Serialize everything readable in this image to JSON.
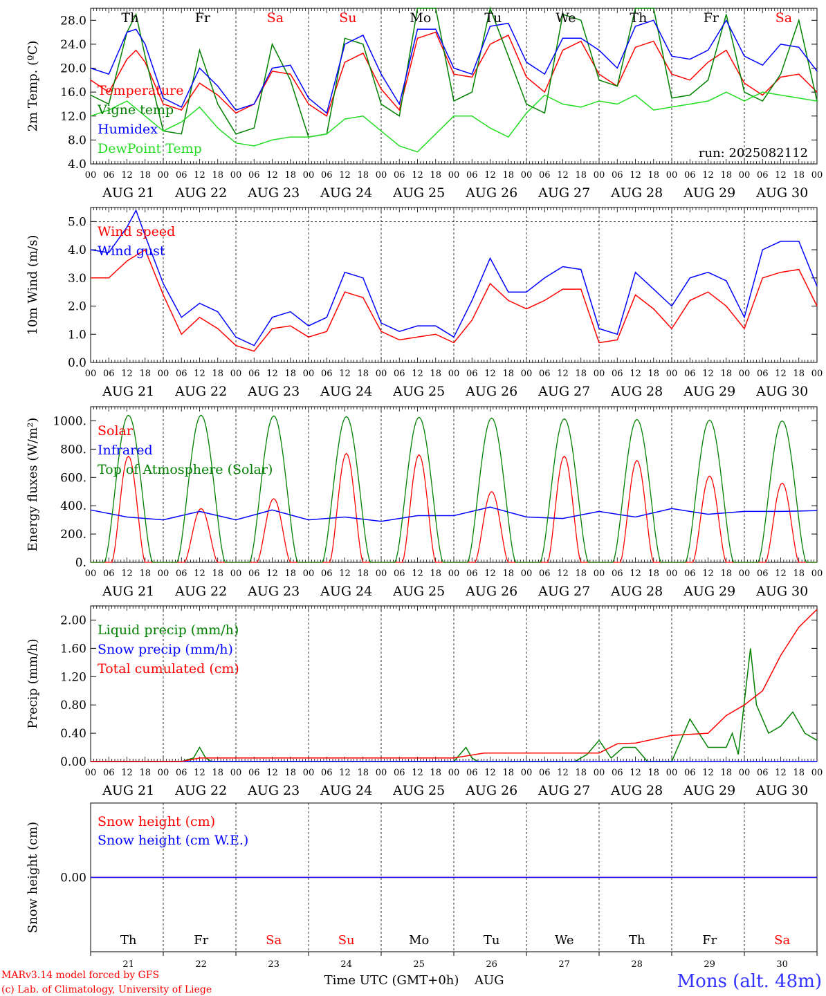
{
  "meteogram": {
    "run_label": "run: 2025082112",
    "credit_line1": "MARv3.14 model forced by GFS",
    "credit_line2": "(c) Lab. of Climatology, University of Liege",
    "time_axis_label": "Time UTC (GMT+0h)",
    "month_label": "AUG",
    "station": "Mons (alt. 48m)",
    "hour_ticks": [
      "00",
      "06",
      "12",
      "18"
    ],
    "days": [
      {
        "date": "AUG 21",
        "num": "21",
        "dow": "Th",
        "weekend": false
      },
      {
        "date": "AUG 22",
        "num": "22",
        "dow": "Fr",
        "weekend": false
      },
      {
        "date": "AUG 23",
        "num": "23",
        "dow": "Sa",
        "weekend": true
      },
      {
        "date": "AUG 24",
        "num": "24",
        "dow": "Su",
        "weekend": true
      },
      {
        "date": "AUG 25",
        "num": "25",
        "dow": "Mo",
        "weekend": false
      },
      {
        "date": "AUG 26",
        "num": "26",
        "dow": "Tu",
        "weekend": false
      },
      {
        "date": "AUG 27",
        "num": "27",
        "dow": "We",
        "weekend": false
      },
      {
        "date": "AUG 28",
        "num": "28",
        "dow": "Th",
        "weekend": false
      },
      {
        "date": "AUG 29",
        "num": "29",
        "dow": "Fr",
        "weekend": false
      },
      {
        "date": "AUG 30",
        "num": "30",
        "dow": "Sa",
        "weekend": true
      }
    ]
  },
  "colors": {
    "red": "#ff0000",
    "green": "#008000",
    "blue": "#0000ff",
    "lime": "#22dd22",
    "weekday": "#000000",
    "weekend": "#ff0000",
    "station": "#3333ff"
  },
  "chart_data": [
    {
      "id": "temperature",
      "type": "line",
      "ylabel": "2m Temp. (ºC)",
      "ylim": [
        4,
        30
      ],
      "yticks": [
        "4.0",
        "8.0",
        "12.0",
        "16.0",
        "20.0",
        "24.0",
        "28.0"
      ],
      "x_unit": "hours since AUG 21 00 UTC",
      "series": [
        {
          "name": "Temperature",
          "color": "red",
          "x": [
            0,
            6,
            12,
            15,
            18,
            24,
            30,
            36,
            42,
            48,
            54,
            60,
            66,
            72,
            78,
            84,
            90,
            96,
            102,
            108,
            114,
            120,
            126,
            132,
            138,
            144,
            150,
            156,
            162,
            168,
            174,
            180,
            186,
            192,
            198,
            204,
            210,
            216,
            222,
            228,
            234,
            240
          ],
          "y": [
            18,
            16,
            21.5,
            23,
            21,
            14,
            13,
            17.5,
            15.5,
            12.5,
            14,
            19.5,
            19,
            14,
            12,
            21,
            22.5,
            16.5,
            13,
            25,
            26,
            19,
            18.5,
            24,
            25.5,
            18.5,
            16,
            23,
            24.5,
            19,
            17,
            23.5,
            24.5,
            19,
            18,
            21,
            23,
            17.5,
            15.5,
            18.5,
            19,
            16
          ]
        },
        {
          "name": "Vigne temp",
          "color": "green",
          "x": [
            0,
            6,
            12,
            15,
            18,
            24,
            30,
            36,
            42,
            48,
            54,
            60,
            66,
            72,
            78,
            84,
            90,
            96,
            102,
            108,
            114,
            120,
            126,
            132,
            138,
            144,
            150,
            156,
            162,
            168,
            174,
            180,
            186,
            192,
            198,
            204,
            210,
            216,
            222,
            228,
            234,
            240
          ],
          "y": [
            15.5,
            14,
            26,
            29,
            22,
            9.5,
            9,
            23,
            14,
            9,
            10,
            24,
            18,
            8.5,
            9,
            25,
            24,
            14,
            12,
            30,
            30,
            14.5,
            16,
            30,
            22,
            14,
            12.5,
            29,
            28,
            18,
            17,
            30,
            30,
            15,
            15.5,
            18,
            29,
            16,
            14.5,
            19,
            28,
            14.5
          ]
        },
        {
          "name": "Humidex",
          "color": "blue",
          "x": [
            0,
            6,
            12,
            15,
            18,
            24,
            30,
            36,
            42,
            48,
            54,
            60,
            66,
            72,
            78,
            84,
            90,
            96,
            102,
            108,
            114,
            120,
            126,
            132,
            138,
            144,
            150,
            156,
            162,
            168,
            174,
            180,
            186,
            192,
            198,
            204,
            210,
            216,
            222,
            228,
            234,
            240
          ],
          "y": [
            20,
            19,
            26,
            26.5,
            24,
            15,
            13.5,
            20,
            17,
            13,
            14,
            20,
            20.5,
            15,
            12.5,
            24,
            25.5,
            19,
            14,
            26.5,
            26.5,
            20,
            19,
            27,
            27.5,
            21,
            19,
            25,
            25,
            23,
            20,
            27,
            28,
            22,
            21.5,
            23,
            28,
            22,
            20.5,
            24,
            23.5,
            19.5
          ]
        },
        {
          "name": "DewPoint Temp",
          "color": "lime",
          "x": [
            0,
            6,
            12,
            18,
            24,
            30,
            36,
            42,
            48,
            54,
            60,
            66,
            72,
            78,
            84,
            90,
            96,
            102,
            108,
            114,
            120,
            126,
            132,
            138,
            144,
            150,
            156,
            162,
            168,
            174,
            180,
            186,
            192,
            198,
            204,
            210,
            216,
            222,
            228,
            234,
            240
          ],
          "y": [
            12,
            13,
            14.5,
            12,
            9.5,
            11,
            13.5,
            10,
            7.5,
            7,
            8,
            8.5,
            8.5,
            9,
            11.5,
            12,
            9.5,
            7,
            6,
            9,
            12,
            12,
            10,
            8.5,
            12.5,
            15.5,
            14,
            13.5,
            14.5,
            14,
            15.5,
            13,
            13.5,
            14,
            14.5,
            16,
            14.5,
            16,
            15.5,
            15,
            14.5
          ]
        }
      ]
    },
    {
      "id": "wind",
      "type": "line",
      "ylabel": "10m Wind (m/s)",
      "ylim": [
        0,
        5.5
      ],
      "yticks": [
        "0.0",
        "1.0",
        "2.0",
        "3.0",
        "4.0",
        "5.0"
      ],
      "x_unit": "hours since AUG 21 00 UTC",
      "series": [
        {
          "name": "Wind speed",
          "color": "red",
          "x": [
            0,
            6,
            12,
            15,
            18,
            24,
            30,
            36,
            42,
            48,
            54,
            60,
            66,
            72,
            78,
            84,
            90,
            96,
            102,
            108,
            114,
            120,
            126,
            132,
            138,
            144,
            150,
            156,
            162,
            168,
            174,
            180,
            186,
            192,
            198,
            204,
            210,
            216,
            222,
            228,
            234,
            240
          ],
          "y": [
            3,
            3,
            3.6,
            3.8,
            4,
            2.4,
            1,
            1.6,
            1.2,
            0.6,
            0.4,
            1.2,
            1.3,
            0.9,
            1.1,
            2.5,
            2.3,
            1.1,
            0.8,
            0.9,
            1,
            0.7,
            1.5,
            2.8,
            2.2,
            1.9,
            2.2,
            2.6,
            2.6,
            0.7,
            0.8,
            2.4,
            1.9,
            1.2,
            2.2,
            2.5,
            2,
            1.2,
            3,
            3.2,
            3.3,
            2
          ]
        },
        {
          "name": "Wind gust",
          "color": "blue",
          "x": [
            0,
            6,
            12,
            15,
            18,
            24,
            30,
            36,
            42,
            48,
            54,
            60,
            66,
            72,
            78,
            84,
            90,
            96,
            102,
            108,
            114,
            120,
            126,
            132,
            138,
            144,
            150,
            156,
            162,
            168,
            174,
            180,
            186,
            192,
            198,
            204,
            210,
            216,
            222,
            228,
            234,
            240
          ],
          "y": [
            4,
            3.9,
            4.8,
            5.4,
            4.5,
            2.8,
            1.6,
            2.1,
            1.8,
            0.9,
            0.6,
            1.6,
            1.8,
            1.3,
            1.6,
            3.2,
            3,
            1.4,
            1.1,
            1.3,
            1.3,
            0.9,
            2.2,
            3.7,
            2.5,
            2.5,
            3,
            3.4,
            3.3,
            1.2,
            1,
            3.2,
            2.6,
            2,
            3,
            3.2,
            2.9,
            1.6,
            4,
            4.3,
            4.3,
            2.7
          ]
        }
      ]
    },
    {
      "id": "energy",
      "type": "line",
      "ylabel": "Energy fluxes (W/m²)",
      "ylim": [
        0,
        1100
      ],
      "yticks": [
        "0.",
        "200.",
        "400.",
        "600.",
        "800.",
        "1000."
      ],
      "x_unit": "hours since AUG 21 00 UTC",
      "peaks": {
        "solar": [
          750,
          380,
          450,
          770,
          760,
          500,
          750,
          720,
          610,
          560
        ],
        "toa": [
          1040,
          1040,
          1035,
          1030,
          1025,
          1020,
          1015,
          1010,
          1005,
          1000
        ]
      },
      "series": [
        {
          "name": "Solar",
          "color": "red",
          "kind": "daily_solar"
        },
        {
          "name": "Infrared",
          "color": "blue",
          "x": [
            0,
            12,
            24,
            36,
            48,
            60,
            72,
            84,
            96,
            108,
            120,
            132,
            144,
            156,
            168,
            180,
            192,
            204,
            216,
            228,
            240
          ],
          "y": [
            370,
            320,
            300,
            360,
            300,
            370,
            300,
            320,
            290,
            330,
            330,
            390,
            320,
            310,
            360,
            320,
            380,
            340,
            360,
            360,
            365
          ]
        },
        {
          "name": "Top of Atmosphere (Solar)",
          "color": "green",
          "kind": "daily_toa"
        }
      ]
    },
    {
      "id": "precip",
      "type": "line",
      "ylabel": "Precip (mm/h)",
      "ylim": [
        0,
        2.2
      ],
      "yticks": [
        "0.00",
        "0.40",
        "0.80",
        "1.20",
        "1.60",
        "2.00"
      ],
      "x_unit": "hours since AUG 21 00 UTC",
      "series": [
        {
          "name": "Liquid precip (mm/h)",
          "color": "green",
          "x": [
            0,
            30,
            34,
            36,
            38,
            40,
            120,
            122,
            124,
            126,
            128,
            160,
            164,
            168,
            172,
            176,
            180,
            184,
            186,
            192,
            198,
            204,
            208,
            210,
            212,
            214,
            218,
            220,
            224,
            228,
            232,
            236,
            240
          ],
          "y": [
            0,
            0,
            0.05,
            0.2,
            0.05,
            0,
            0,
            0.1,
            0.2,
            0.05,
            0,
            0,
            0.1,
            0.3,
            0.05,
            0.2,
            0.2,
            0,
            0,
            0,
            0.6,
            0.2,
            0.2,
            0.2,
            0.4,
            0.1,
            1.6,
            0.8,
            0.4,
            0.5,
            0.7,
            0.4,
            0.3
          ]
        },
        {
          "name": "Snow precip (mm/h)",
          "color": "blue",
          "x": [
            0,
            240
          ],
          "y": [
            0,
            0
          ]
        },
        {
          "name": "Total cumulated (cm)",
          "color": "red",
          "x": [
            0,
            30,
            36,
            120,
            130,
            168,
            174,
            180,
            192,
            204,
            210,
            216,
            222,
            228,
            234,
            240
          ],
          "y": [
            0,
            0,
            0.05,
            0.05,
            0.12,
            0.12,
            0.25,
            0.26,
            0.37,
            0.4,
            0.65,
            0.8,
            1,
            1.5,
            1.9,
            2.15
          ]
        }
      ]
    },
    {
      "id": "snow",
      "type": "line",
      "ylabel": "Snow height (cm)",
      "ylim": [
        -1,
        1
      ],
      "yticks": [
        "0.00"
      ],
      "x_unit": "hours since AUG 21 00 UTC",
      "series": [
        {
          "name": "Snow height (cm)",
          "color": "red",
          "x": [
            0,
            240
          ],
          "y": [
            0,
            0
          ]
        },
        {
          "name": "Snow height (cm W.E.)",
          "color": "blue",
          "x": [
            0,
            240
          ],
          "y": [
            0,
            0
          ]
        }
      ]
    }
  ]
}
